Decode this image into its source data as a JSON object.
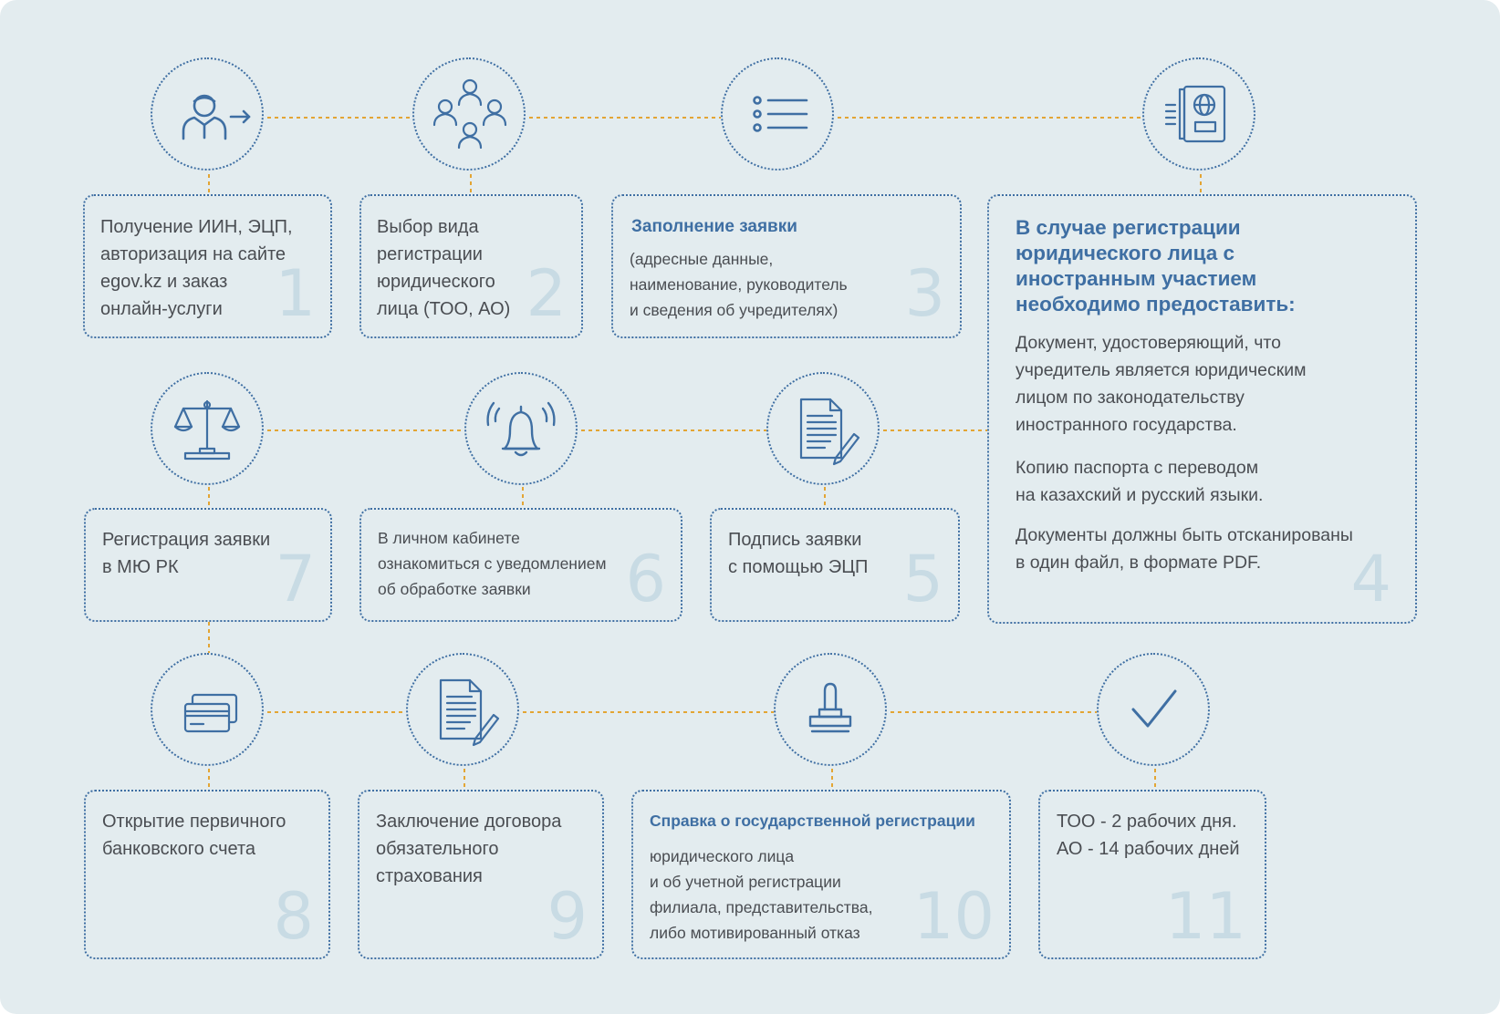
{
  "colors": {
    "background": "#e3ecef",
    "accent_blue": "#3f6fa3",
    "connector_orange": "#e3a534",
    "number_watermark": "#c8dbe4",
    "text": "#4a4d52"
  },
  "steps": [
    {
      "number": "1",
      "icon": "person-arrow-icon",
      "text": "Получение ИИН, ЭЦП,\nавторизация на сайте\negov.kz и заказ\nонлайн-услуги"
    },
    {
      "number": "2",
      "icon": "group-people-icon",
      "text": "Выбор вида\nрегистрации\nюридического\nлица (ТОО, АО)"
    },
    {
      "number": "3",
      "icon": "list-icon",
      "heading": "Заполнение заявки",
      "text": "(адресные данные,\nнаименование, руководитель\nи сведения об учредителях)"
    },
    {
      "number": "4",
      "icon": "passport-globe-icon",
      "heading": "В случае регистрации\nюридического лица с\nиностранным участием\nнеобходимо предоставить:",
      "paragraphs": [
        "Документ, удостоверяющий, что\nучредитель является юридическим\nлицом по законодательству\nиностранного государства.",
        "Копию паспорта с переводом\nна казахский и русский языки.",
        "Документы должны быть отсканированы\nв один файл, в формате PDF."
      ]
    },
    {
      "number": "5",
      "icon": "document-sign-icon",
      "text": "Подпись заявки\nс помощью ЭЦП"
    },
    {
      "number": "6",
      "icon": "bell-icon",
      "text": "В личном кабинете\nознакомиться с уведомлением\nоб обработке заявки"
    },
    {
      "number": "7",
      "icon": "scales-icon",
      "text": "Регистрация заявки\nв МЮ РК"
    },
    {
      "number": "8",
      "icon": "bank-cards-icon",
      "text": "Открытие первичного\nбанковского счета"
    },
    {
      "number": "9",
      "icon": "contract-sign-icon",
      "text": "Заключение договора\nобязательного\nстрахования"
    },
    {
      "number": "10",
      "icon": "stamp-icon",
      "heading": "Справка о государственной регистрации",
      "text": "юридического лица\nи об учетной регистрации\nфилиала, представительства,\nлибо мотивированный отказ"
    },
    {
      "number": "11",
      "icon": "checkmark-icon",
      "text": "ТОО - 2 рабочих дня.\nАО - 14 рабочих дней"
    }
  ]
}
